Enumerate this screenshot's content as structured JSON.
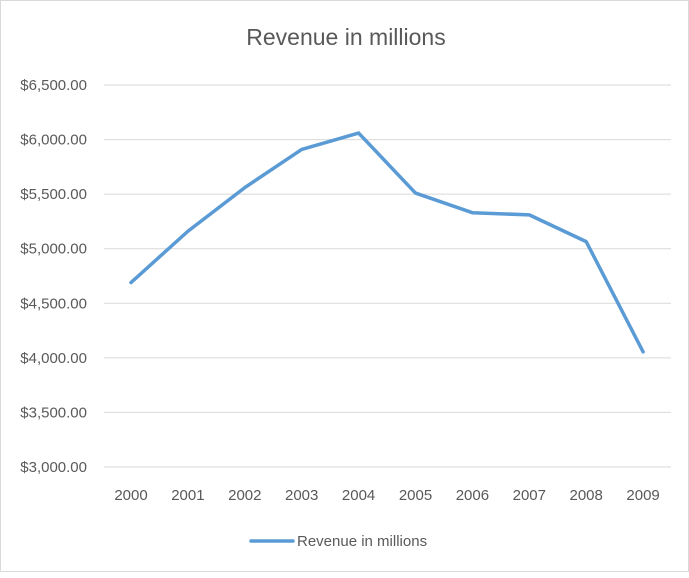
{
  "chart_data": {
    "type": "line",
    "title": "Revenue in millions",
    "xlabel": "",
    "ylabel": "",
    "categories": [
      "2000",
      "2001",
      "2002",
      "2003",
      "2004",
      "2005",
      "2006",
      "2007",
      "2008",
      "2009"
    ],
    "series": [
      {
        "name": "Revenue in millions",
        "color": "#5b9bd5",
        "values": [
          4690,
          5160,
          5560,
          5910,
          6060,
          5510,
          5330,
          5310,
          5065,
          4055
        ]
      }
    ],
    "ylim": [
      3000,
      6500
    ],
    "yticks": [
      3000,
      3500,
      4000,
      4500,
      5000,
      5500,
      6000,
      6500
    ],
    "ytick_labels": [
      "$3,000.00",
      "$3,500.00",
      "$4,000.00",
      "$4,500.00",
      "$5,000.00",
      "$5,500.00",
      "$6,000.00",
      "$6,500.00"
    ],
    "grid": true,
    "legend": "bottom"
  }
}
